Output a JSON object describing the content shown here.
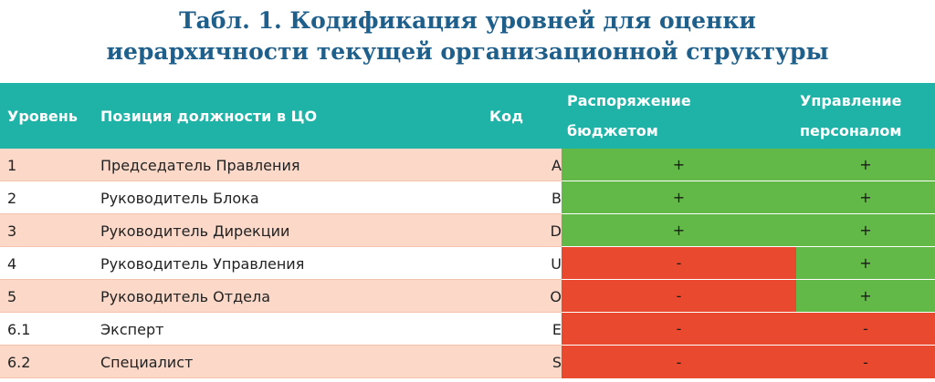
{
  "title": {
    "line1": "Табл. 1. Кодификация уровней для оценки",
    "line2": "иерархичности текущей организационной структуры"
  },
  "table": {
    "headers": {
      "level": "Уровень",
      "position": "Позиция должности в ЦО",
      "code": "Код",
      "budget_line1": "Распоряжение",
      "budget_line2": "бюджетом",
      "staff_line1": "Управление",
      "staff_line2": "персоналом"
    },
    "rows": [
      {
        "level": "1",
        "position": "Председатель Правления",
        "code": "A",
        "budget": "+",
        "staff": "+"
      },
      {
        "level": "2",
        "position": "Руководитель Блока",
        "code": "B",
        "budget": "+",
        "staff": "+"
      },
      {
        "level": "3",
        "position": "Руководитель Дирекции",
        "code": "D",
        "budget": "+",
        "staff": "+"
      },
      {
        "level": "4",
        "position": "Руководитель Управления",
        "code": "U",
        "budget": "-",
        "staff": "+"
      },
      {
        "level": "5",
        "position": "Руководитель Отдела",
        "code": "O",
        "budget": "-",
        "staff": "+"
      },
      {
        "level": "6.1",
        "position": "Эксперт",
        "code": "E",
        "budget": "-",
        "staff": "-"
      },
      {
        "level": "6.2",
        "position": "Специалист",
        "code": "S",
        "budget": "-",
        "staff": "-"
      }
    ],
    "colors": {
      "header": "#1fb3a8",
      "title": "#1f5f8b",
      "row_alt": "#fbd8c8",
      "positive": "#63b947",
      "negative": "#e8492f"
    }
  }
}
